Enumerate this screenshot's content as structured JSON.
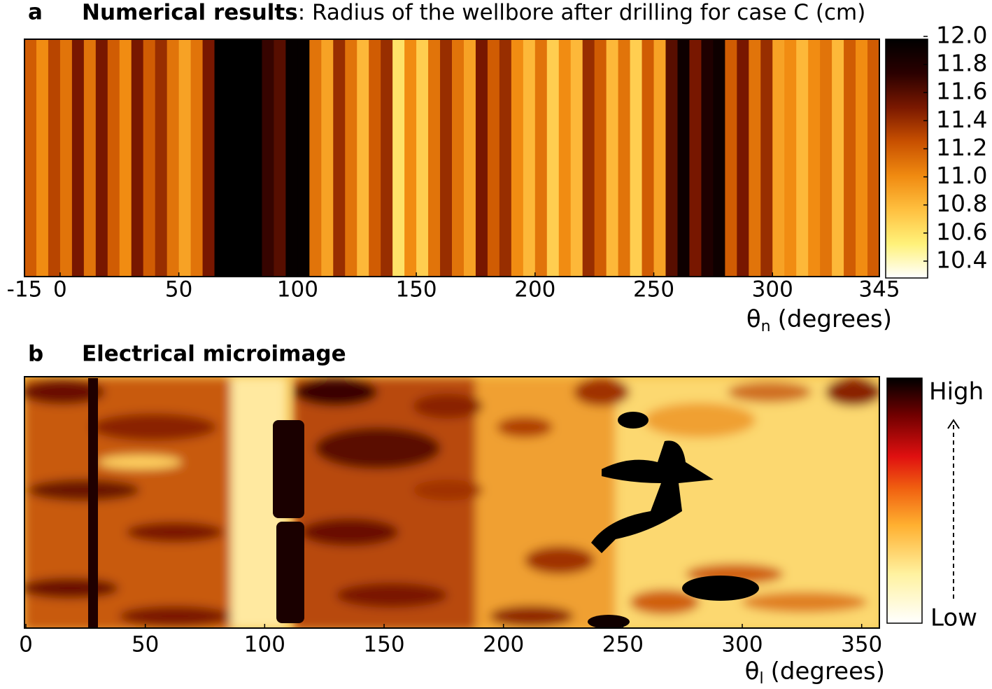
{
  "chart_data": [
    {
      "type": "stripes",
      "label": "a",
      "title": "Numerical results",
      "title_suffix": ": Radius of the wellbore after drilling for case C (cm)",
      "xlabel": {
        "symbol": "θ",
        "subscript": "n",
        "unit": "(degrees)"
      },
      "xlim": [
        -15,
        345
      ],
      "xticks": [
        -15,
        0,
        50,
        100,
        150,
        200,
        250,
        300,
        345
      ],
      "bins": [
        -15,
        -10,
        -5,
        0,
        5,
        10,
        15,
        20,
        25,
        30,
        35,
        40,
        45,
        50,
        55,
        60,
        65,
        70,
        75,
        80,
        85,
        90,
        95,
        100,
        105,
        110,
        115,
        120,
        125,
        130,
        135,
        140,
        145,
        150,
        155,
        160,
        165,
        170,
        175,
        180,
        185,
        190,
        195,
        200,
        205,
        210,
        215,
        220,
        225,
        230,
        235,
        240,
        245,
        250,
        255,
        260,
        265,
        270,
        275,
        280,
        285,
        290,
        295,
        300,
        305,
        310,
        315,
        320,
        325,
        330,
        335,
        340,
        345
      ],
      "values": [
        11.2,
        11.0,
        11.3,
        11.1,
        11.5,
        11.1,
        11.5,
        11.2,
        11.0,
        11.5,
        11.2,
        11.4,
        11.1,
        10.9,
        11.1,
        11.5,
        12.0,
        12.0,
        12.0,
        12.0,
        11.7,
        11.6,
        11.95,
        11.95,
        11.1,
        10.9,
        11.4,
        11.1,
        10.8,
        11.2,
        11.4,
        10.6,
        11.0,
        10.7,
        11.1,
        11.4,
        11.1,
        10.9,
        11.5,
        11.2,
        11.4,
        11.0,
        10.8,
        11.1,
        10.7,
        11.0,
        10.8,
        11.4,
        11.2,
        10.8,
        11.1,
        10.7,
        11.2,
        10.9,
        11.6,
        11.9,
        11.5,
        11.8,
        11.9,
        11.2,
        11.5,
        11.1,
        11.4,
        10.9,
        11.0,
        10.8,
        11.0,
        11.1,
        10.8,
        11.2,
        11.0,
        11.2
      ],
      "clim": [
        10.28,
        11.98
      ],
      "cticks": [
        {
          "value": 12,
          "label": "12.0"
        },
        11.8,
        11.6,
        11.4,
        11.2,
        {
          "value": 11,
          "label": "11.0"
        },
        10.8,
        10.6,
        10.4
      ],
      "colormap": [
        "#ffffff",
        "#fff27a",
        "#ffc040",
        "#f08a10",
        "#c85000",
        "#7a1800",
        "#2a0000",
        "#000000"
      ]
    },
    {
      "type": "image",
      "label": "b",
      "title": "Electrical microimage",
      "xlabel": {
        "symbol": "θ",
        "subscript": "l",
        "unit": "(degrees)"
      },
      "xlim": [
        0,
        358
      ],
      "xticks": [
        0,
        50,
        100,
        150,
        200,
        250,
        300,
        350
      ],
      "colorbar_labels": [
        "High",
        "Low"
      ]
    }
  ]
}
